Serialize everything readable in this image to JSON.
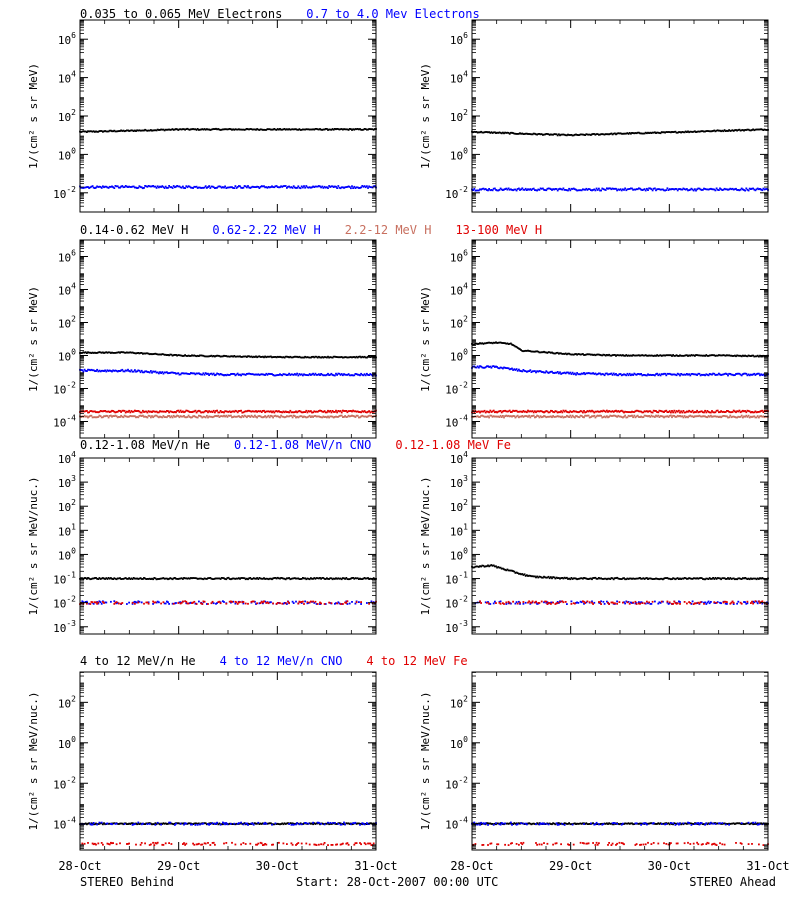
{
  "legend_rows": [
    [
      {
        "text": "0.035 to 0.065 MeV Electrons",
        "color": "#000000"
      },
      {
        "text": "0.7 to 4.0 Mev Electrons",
        "color": "#0000ff"
      }
    ],
    [
      {
        "text": "0.14-0.62 MeV H",
        "color": "#000000"
      },
      {
        "text": "0.62-2.22 MeV H",
        "color": "#0000ff"
      },
      {
        "text": "2.2-12 MeV H",
        "color": "#c87060"
      },
      {
        "text": "13-100 MeV H",
        "color": "#e00000"
      }
    ],
    [
      {
        "text": "0.12-1.08 MeV/n He",
        "color": "#000000"
      },
      {
        "text": "0.12-1.08 MeV/n CNO",
        "color": "#0000ff"
      },
      {
        "text": "0.12-1.08 MeV Fe",
        "color": "#e00000"
      }
    ],
    [
      {
        "text": "4 to 12 MeV/n He",
        "color": "#000000"
      },
      {
        "text": "4 to 12 MeV/n CNO",
        "color": "#0000ff"
      },
      {
        "text": "4 to 12 MeV Fe",
        "color": "#e00000"
      }
    ]
  ],
  "footer": {
    "left": "STEREO Behind",
    "center": "Start: 28-Oct-2007 00:00 UTC",
    "right": "STEREO Ahead"
  },
  "x_axis": {
    "tick_labels": [
      "28-Oct",
      "29-Oct",
      "30-Oct",
      "31-Oct"
    ],
    "range_days": [
      0,
      3
    ]
  },
  "colors": {
    "black": "#000000",
    "blue": "#0000ff",
    "brown": "#c87060",
    "red": "#e00000"
  },
  "chart_data": [
    {
      "type": "scatter",
      "row": 1,
      "spacecraft": "STEREO Behind",
      "ylabel": "1/(cm² s sr MeV)",
      "yscale": "log",
      "ylim_log10": [
        -3,
        7
      ],
      "ytick_exponents": [
        -2,
        0,
        2,
        4,
        6
      ],
      "series": [
        {
          "name": "0.035 to 0.065 MeV Electrons",
          "color": "black",
          "x": [
            0,
            0.5,
            1,
            1.5,
            2,
            2.5,
            3
          ],
          "y": [
            15,
            17,
            20,
            20,
            20,
            20,
            20
          ]
        },
        {
          "name": "0.7 to 4.0 Mev Electrons",
          "color": "blue",
          "x": [
            0,
            0.5,
            1,
            1.5,
            2,
            2.5,
            3
          ],
          "y": [
            0.02,
            0.02,
            0.02,
            0.02,
            0.02,
            0.02,
            0.02
          ]
        }
      ]
    },
    {
      "type": "scatter",
      "row": 1,
      "spacecraft": "STEREO Ahead",
      "ylabel": "1/(cm² s sr MeV)",
      "yscale": "log",
      "ylim_log10": [
        -3,
        7
      ],
      "ytick_exponents": [
        -2,
        0,
        2,
        4,
        6
      ],
      "series": [
        {
          "name": "0.035 to 0.065 MeV Electrons",
          "color": "black",
          "x": [
            0,
            0.5,
            1,
            1.5,
            2,
            2.5,
            3
          ],
          "y": [
            15,
            12,
            10,
            12,
            14,
            17,
            20
          ]
        },
        {
          "name": "0.7 to 4.0 Mev Electrons",
          "color": "blue",
          "x": [
            0,
            0.5,
            1,
            1.5,
            2,
            2.5,
            3
          ],
          "y": [
            0.015,
            0.015,
            0.015,
            0.015,
            0.015,
            0.015,
            0.015
          ]
        }
      ]
    },
    {
      "type": "scatter",
      "row": 2,
      "spacecraft": "STEREO Behind",
      "ylabel": "1/(cm² s sr MeV)",
      "yscale": "log",
      "ylim_log10": [
        -5,
        7
      ],
      "ytick_exponents": [
        -4,
        -2,
        0,
        2,
        4,
        6
      ],
      "series": [
        {
          "name": "0.14-0.62 MeV H",
          "color": "black",
          "x": [
            0,
            0.5,
            1,
            1.5,
            2,
            2.5,
            3
          ],
          "y": [
            1.5,
            1.5,
            1.0,
            0.9,
            0.8,
            0.8,
            0.8
          ]
        },
        {
          "name": "0.62-2.22 MeV H",
          "color": "blue",
          "x": [
            0,
            0.5,
            1,
            1.5,
            2,
            2.5,
            3
          ],
          "y": [
            0.12,
            0.12,
            0.08,
            0.07,
            0.07,
            0.07,
            0.07
          ]
        },
        {
          "name": "2.2-12 MeV H",
          "color": "brown",
          "x": [
            0,
            0.5,
            1,
            1.5,
            2,
            2.5,
            3
          ],
          "y": [
            0.0002,
            0.0002,
            0.0002,
            0.0002,
            0.0002,
            0.0002,
            0.0002
          ]
        },
        {
          "name": "13-100 MeV H",
          "color": "red",
          "x": [
            0,
            0.5,
            1,
            1.5,
            2,
            2.5,
            3
          ],
          "y": [
            0.0004,
            0.0004,
            0.0004,
            0.0004,
            0.0004,
            0.0004,
            0.0004
          ]
        }
      ]
    },
    {
      "type": "scatter",
      "row": 2,
      "spacecraft": "STEREO Ahead",
      "ylabel": "1/(cm² s sr MeV)",
      "yscale": "log",
      "ylim_log10": [
        -5,
        7
      ],
      "ytick_exponents": [
        -4,
        -2,
        0,
        2,
        4,
        6
      ],
      "series": [
        {
          "name": "0.14-0.62 MeV H",
          "color": "black",
          "x": [
            0,
            0.25,
            0.4,
            0.5,
            1,
            1.5,
            2,
            2.5,
            3
          ],
          "y": [
            5,
            6,
            5,
            2,
            1.2,
            1.0,
            1.0,
            1.0,
            0.9
          ]
        },
        {
          "name": "0.62-2.22 MeV H",
          "color": "blue",
          "x": [
            0,
            0.25,
            0.5,
            1,
            1.5,
            2,
            2.5,
            3
          ],
          "y": [
            0.2,
            0.2,
            0.12,
            0.08,
            0.07,
            0.07,
            0.07,
            0.07
          ]
        },
        {
          "name": "2.2-12 MeV H",
          "color": "brown",
          "x": [
            0,
            0.5,
            1,
            1.5,
            2,
            2.5,
            3
          ],
          "y": [
            0.0002,
            0.0002,
            0.0002,
            0.0002,
            0.0002,
            0.0002,
            0.0002
          ]
        },
        {
          "name": "13-100 MeV H",
          "color": "red",
          "x": [
            0,
            0.5,
            1,
            1.5,
            2,
            2.5,
            3
          ],
          "y": [
            0.0004,
            0.0004,
            0.0004,
            0.0004,
            0.0004,
            0.0004,
            0.0004
          ]
        }
      ]
    },
    {
      "type": "scatter",
      "row": 3,
      "spacecraft": "STEREO Behind",
      "ylabel": "1/(cm² s sr MeV/nuc.)",
      "yscale": "log",
      "ylim_log10": [
        -3.3,
        4
      ],
      "ytick_exponents": [
        -3,
        -2,
        -1,
        0,
        1,
        2,
        3,
        4
      ],
      "series": [
        {
          "name": "0.12-1.08 MeV/n He",
          "color": "black",
          "x": [
            0,
            0.5,
            1,
            1.5,
            2,
            2.5,
            3
          ],
          "y": [
            0.1,
            0.1,
            0.1,
            0.1,
            0.1,
            0.1,
            0.1
          ]
        },
        {
          "name": "0.12-1.08 MeV/n CNO",
          "color": "blue",
          "x": [
            0,
            0.5,
            1,
            1.5,
            2,
            2.5,
            3
          ],
          "y": [
            0.01,
            0.01,
            0.01,
            0.01,
            0.01,
            0.01,
            0.01
          ]
        },
        {
          "name": "0.12-1.08 MeV Fe",
          "color": "red",
          "x": [
            0,
            0.5,
            1,
            1.5,
            2,
            2.5,
            3
          ],
          "y": [
            0.01,
            0.01,
            0.01,
            0.01,
            0.01,
            0.01,
            0.01
          ]
        }
      ]
    },
    {
      "type": "scatter",
      "row": 3,
      "spacecraft": "STEREO Ahead",
      "ylabel": "1/(cm² s sr MeV/nuc.)",
      "yscale": "log",
      "ylim_log10": [
        -3.3,
        4
      ],
      "ytick_exponents": [
        -3,
        -2,
        -1,
        0,
        1,
        2,
        3,
        4
      ],
      "series": [
        {
          "name": "0.12-1.08 MeV/n He",
          "color": "black",
          "x": [
            0,
            0.2,
            0.4,
            0.6,
            1,
            1.5,
            2,
            2.5,
            3
          ],
          "y": [
            0.3,
            0.35,
            0.2,
            0.12,
            0.1,
            0.1,
            0.1,
            0.1,
            0.1
          ]
        },
        {
          "name": "0.12-1.08 MeV/n CNO",
          "color": "blue",
          "x": [
            0,
            0.5,
            1,
            1.5,
            2,
            2.5,
            3
          ],
          "y": [
            0.01,
            0.01,
            0.01,
            0.01,
            0.01,
            0.01,
            0.01
          ]
        },
        {
          "name": "0.12-1.08 MeV Fe",
          "color": "red",
          "x": [
            0,
            0.5,
            1,
            1.5,
            2,
            2.5,
            3
          ],
          "y": [
            0.01,
            0.01,
            0.01,
            0.01,
            0.01,
            0.01,
            0.01
          ]
        }
      ]
    },
    {
      "type": "scatter",
      "row": 4,
      "spacecraft": "STEREO Behind",
      "ylabel": "1/(cm² s sr MeV/nuc.)",
      "yscale": "log",
      "ylim_log10": [
        -5.3,
        3.5
      ],
      "ytick_exponents": [
        -4,
        -2,
        0,
        2
      ],
      "series": [
        {
          "name": "4 to 12 MeV/n He",
          "color": "black",
          "x": [
            0,
            0.5,
            1,
            1.5,
            2,
            2.5,
            3
          ],
          "y": [
            0.0001,
            0.0001,
            0.0001,
            0.0001,
            0.0001,
            0.0001,
            0.0001
          ]
        },
        {
          "name": "4 to 12 MeV/n CNO",
          "color": "blue",
          "x": [
            0,
            0.5,
            1,
            1.5,
            2,
            2.5,
            3
          ],
          "y": [
            0.0001,
            0.0001,
            0.0001,
            0.0001,
            0.0001,
            0.0001,
            0.0001
          ]
        },
        {
          "name": "4 to 12 MeV Fe",
          "color": "red",
          "x": [
            0,
            1,
            2,
            3
          ],
          "y": [
            1e-05,
            1e-05,
            1e-05,
            1e-05
          ]
        }
      ]
    },
    {
      "type": "scatter",
      "row": 4,
      "spacecraft": "STEREO Ahead",
      "ylabel": "1/(cm² s sr MeV/nuc.)",
      "yscale": "log",
      "ylim_log10": [
        -5.3,
        3.5
      ],
      "ytick_exponents": [
        -4,
        -2,
        0,
        2
      ],
      "series": [
        {
          "name": "4 to 12 MeV/n He",
          "color": "black",
          "x": [
            0,
            1,
            2,
            3
          ],
          "y": [
            0.0001,
            0.0001,
            0.0001,
            0.0001
          ]
        },
        {
          "name": "4 to 12 MeV/n CNO",
          "color": "blue",
          "x": [
            0,
            0.5,
            1,
            1.5,
            2,
            2.5,
            3
          ],
          "y": [
            0.0001,
            0.0001,
            0.0001,
            0.0001,
            0.0001,
            0.0001,
            0.0001
          ]
        },
        {
          "name": "4 to 12 MeV Fe",
          "color": "red",
          "x": [
            0,
            1,
            2,
            3
          ],
          "y": [
            1e-05,
            1e-05,
            1e-05,
            1e-05
          ]
        }
      ]
    }
  ]
}
